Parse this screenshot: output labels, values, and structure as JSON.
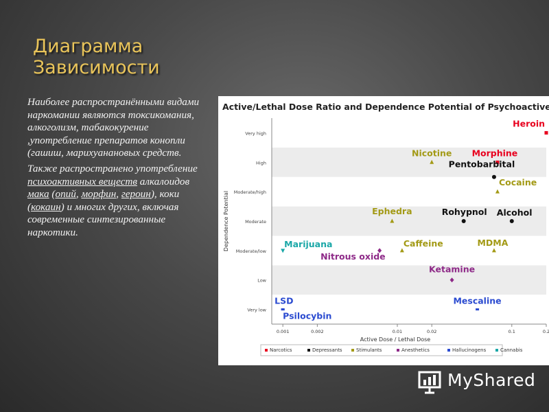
{
  "slide": {
    "title_line1": "Диаграмма",
    "title_line2": "Зависимости"
  },
  "body": {
    "p1": "Наиболее распространёнными видами наркомании являются токсикомания, алкоголизм, табакокурение ,употребление препаратов конопли (гашиш, марихуанановых средств.",
    "p2_a": "Также распространено употребление ",
    "p2_link_psycho": "психоактивных веществ",
    "p2_b": " алкалоидов ",
    "p2_link_mak": "мака",
    "p2_c": " (",
    "p2_link_opiy": "опий",
    "p2_d": ", ",
    "p2_link_morfin": "морфин",
    "p2_e": ", ",
    "p2_link_geroin": "героин",
    "p2_f": "), коки (",
    "p2_link_kokain": "кокаин",
    "p2_g": ") и многих других, включая современные синтезированные наркотики."
  },
  "logo": {
    "text": "MyShared"
  },
  "colors": {
    "Narcotics": "#e8001e",
    "Depressants": "#111111",
    "Stimulants": "#a39a16",
    "Anesthetics": "#8e2a88",
    "Hallucinogens": "#2b4bd0",
    "Cannabis": "#1aa7a7"
  },
  "chart_data": {
    "type": "scatter",
    "title": "Active/Lethal Dose Ratio and Dependence Potential of Psychoactive Drugs",
    "xlabel": "Active Dose / Lethal Dose",
    "ylabel": "Dependence Potential",
    "xscale": "log",
    "xlim": [
      0.0008,
      0.2
    ],
    "x_ticks": [
      0.001,
      0.002,
      0.01,
      0.02,
      0.1,
      0.2
    ],
    "x_tick_labels": [
      "0.001",
      "0.002",
      "0.01",
      "0.02",
      "0.1",
      "0.2"
    ],
    "y_categories": [
      "Very low",
      "Low",
      "Moderate/low",
      "Moderate",
      "Moderate/high",
      "High",
      "Very high"
    ],
    "grid": "horizontal bands",
    "legend_position": "bottom",
    "legend": [
      "Narcotics",
      "Depressants",
      "Stimulants",
      "Anesthetics",
      "Hallucinogens",
      "Cannabis"
    ],
    "points": [
      {
        "name": "Heroin",
        "class": "Narcotics",
        "x": 0.2,
        "y": 6
      },
      {
        "name": "Morphine",
        "class": "Narcotics",
        "x": 0.075,
        "y": 5
      },
      {
        "name": "Nicotine",
        "class": "Stimulants",
        "x": 0.02,
        "y": 5
      },
      {
        "name": "Pentobarbital",
        "class": "Depressants",
        "x": 0.07,
        "y": 4.5
      },
      {
        "name": "Cocaine",
        "class": "Stimulants",
        "x": 0.075,
        "y": 4
      },
      {
        "name": "Ephedra",
        "class": "Stimulants",
        "x": 0.009,
        "y": 3
      },
      {
        "name": "Rohypnol",
        "class": "Depressants",
        "x": 0.038,
        "y": 3
      },
      {
        "name": "Alcohol",
        "class": "Depressants",
        "x": 0.1,
        "y": 3
      },
      {
        "name": "Marijuana",
        "class": "Cannabis",
        "x": 0.001,
        "y": 2
      },
      {
        "name": "Caffeine",
        "class": "Stimulants",
        "x": 0.011,
        "y": 2
      },
      {
        "name": "MDMA",
        "class": "Stimulants",
        "x": 0.07,
        "y": 2
      },
      {
        "name": "Nitrous oxide",
        "class": "Anesthetics",
        "x": 0.007,
        "y": 2
      },
      {
        "name": "Ketamine",
        "class": "Anesthetics",
        "x": 0.03,
        "y": 1
      },
      {
        "name": "LSD",
        "class": "Hallucinogens",
        "x": 0.001,
        "y": 0
      },
      {
        "name": "Psilocybin",
        "class": "Hallucinogens",
        "x": 0.001,
        "y": 0
      },
      {
        "name": "Mescaline",
        "class": "Hallucinogens",
        "x": 0.05,
        "y": 0
      }
    ]
  }
}
